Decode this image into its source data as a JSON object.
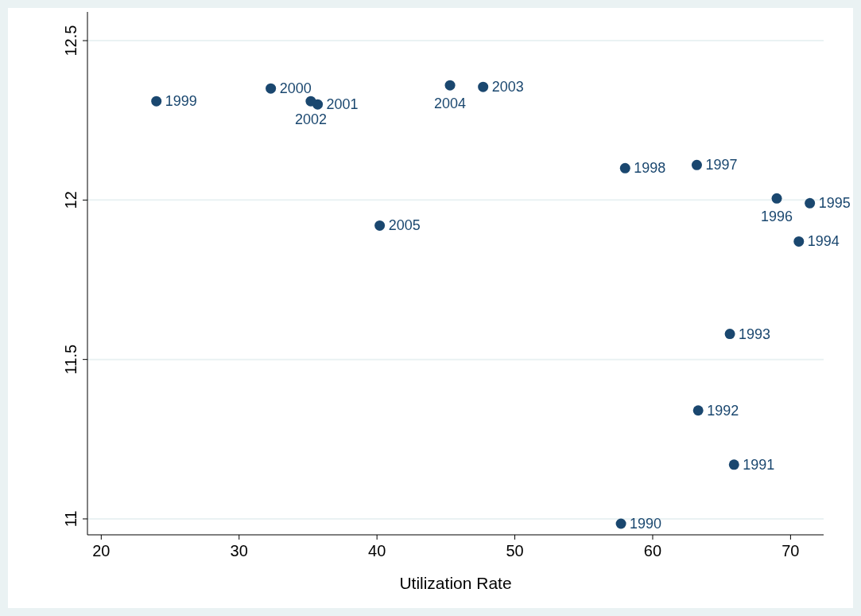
{
  "chart_data": {
    "type": "scatter",
    "xlabel": "Utilization Rate",
    "x": [
      57.7,
      65.9,
      63.3,
      65.6,
      70.6,
      71.4,
      69.0,
      63.2,
      58.0,
      24.0,
      32.3,
      35.7,
      35.2,
      47.7,
      45.3,
      40.2
    ],
    "series": [
      {
        "color": "#1a476f",
        "values": [
          10.985,
          11.17,
          11.34,
          11.58,
          11.87,
          11.99,
          12.005,
          12.11,
          12.1,
          12.31,
          12.35,
          12.3,
          12.31,
          12.355,
          12.36,
          11.92
        ]
      }
    ],
    "xlim": [
      19.0,
      72.4
    ],
    "ylim": [
      10.95,
      12.59
    ],
    "xticks": [
      20,
      30,
      40,
      50,
      60,
      70
    ],
    "yticks": [
      11,
      11.5,
      12,
      12.5
    ],
    "grid": "y",
    "marker": "circle",
    "annotations": [
      {
        "text": "1990",
        "x": 57.7,
        "y": 10.985
      },
      {
        "text": "1991",
        "x": 65.9,
        "y": 11.17
      },
      {
        "text": "1992",
        "x": 63.3,
        "y": 11.34
      },
      {
        "text": "1993",
        "x": 65.6,
        "y": 11.58
      },
      {
        "text": "1994",
        "x": 70.6,
        "y": 11.87
      },
      {
        "text": "1995",
        "x": 71.4,
        "y": 11.99
      },
      {
        "text": "1996",
        "x": 69.0,
        "y": 12.005
      },
      {
        "text": "1997",
        "x": 63.2,
        "y": 12.11
      },
      {
        "text": "1998",
        "x": 58.0,
        "y": 12.1
      },
      {
        "text": "1999",
        "x": 24.0,
        "y": 12.31
      },
      {
        "text": "2000",
        "x": 32.3,
        "y": 12.35
      },
      {
        "text": "2001",
        "x": 35.7,
        "y": 12.3
      },
      {
        "text": "2002",
        "x": 35.2,
        "y": 12.31
      },
      {
        "text": "2003",
        "x": 47.7,
        "y": 12.355
      },
      {
        "text": "2004",
        "x": 45.3,
        "y": 12.36
      },
      {
        "text": "2005",
        "x": 40.2,
        "y": 11.92
      }
    ]
  }
}
